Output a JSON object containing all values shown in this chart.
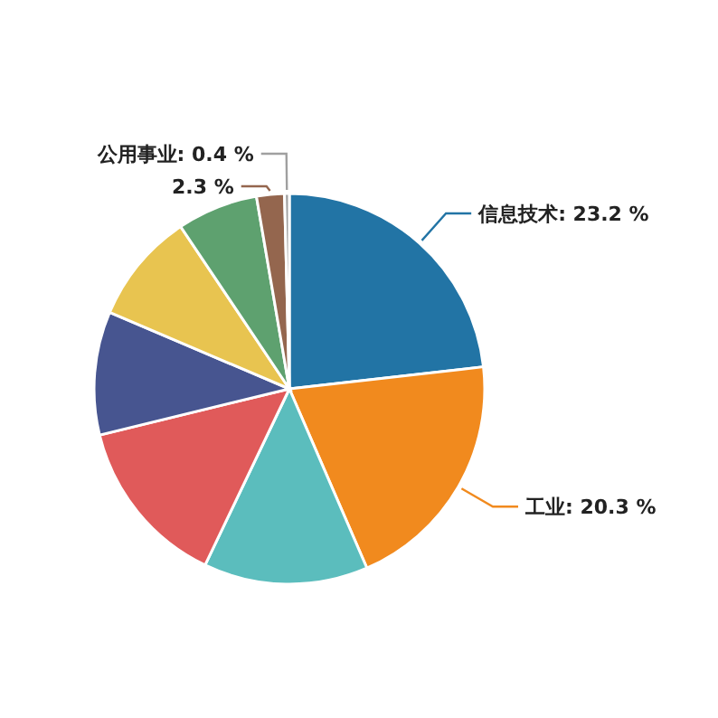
{
  "chart_data": {
    "type": "pie",
    "categories": [
      "信息技术",
      "工业",
      null,
      null,
      null,
      null,
      null,
      null,
      "公用事业"
    ],
    "values": [
      23.2,
      20.3,
      13.6,
      14.1,
      10.2,
      9.2,
      6.7,
      2.3,
      0.4
    ],
    "colors": [
      "#2274a5",
      "#f18a1e",
      "#5bbdbd",
      "#e05a5a",
      "#475590",
      "#e8c450",
      "#5ea16f",
      "#94664e",
      "#a0a0a0"
    ],
    "value_labels": [
      "23.2 %",
      "20.3 %",
      null,
      null,
      null,
      null,
      null,
      "2.3 %",
      "0.4 %"
    ]
  }
}
